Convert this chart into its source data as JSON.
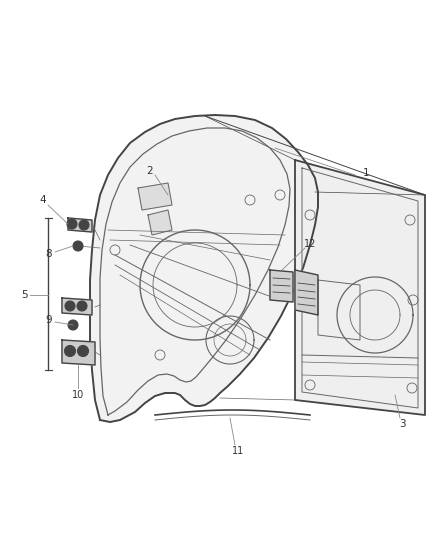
{
  "background_color": "#ffffff",
  "line_color": "#666666",
  "dark_line_color": "#444444",
  "label_color": "#333333",
  "fig_width": 4.38,
  "fig_height": 5.33,
  "dpi": 100
}
